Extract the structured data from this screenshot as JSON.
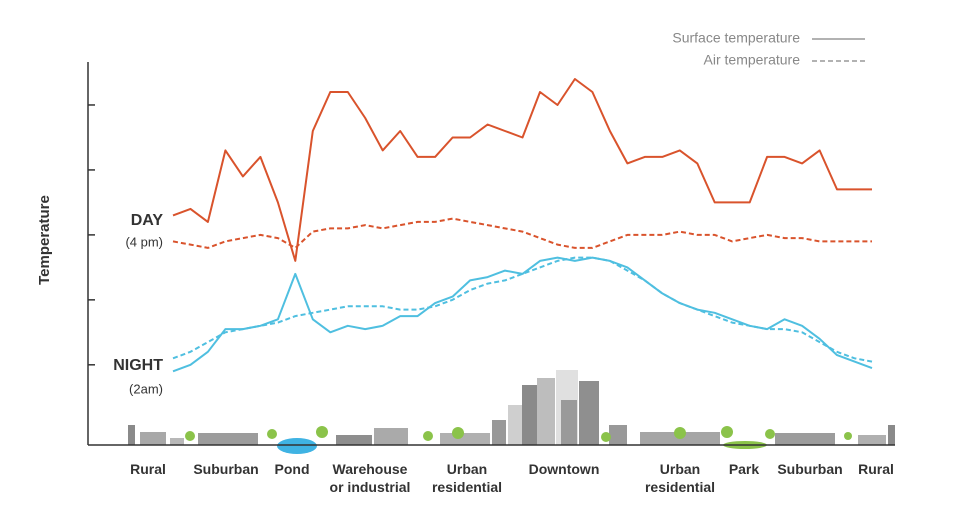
{
  "chart_data": {
    "type": "line",
    "y_label": "Temperature",
    "annotations": [
      "DAY",
      "(4 pm)",
      "NIGHT",
      "(2am)"
    ],
    "legend": [
      {
        "name": "Surface temperature",
        "style": "solid"
      },
      {
        "name": "Air temperature",
        "style": "dashed"
      }
    ],
    "zones": [
      "Rural",
      "Suburban",
      "Pond",
      "Warehouse or industrial",
      "Urban residential",
      "Downtown",
      "Urban residential",
      "Park",
      "Suburban",
      "Rural"
    ],
    "xlim": [
      0,
      100
    ],
    "ylim": [
      -0.25,
      5.6
    ],
    "yticks": [
      1,
      2,
      3,
      4,
      5
    ],
    "x": [
      0,
      2.5,
      5,
      7.5,
      10,
      12.5,
      15,
      17.5,
      20,
      22.5,
      25,
      27.5,
      30,
      32.5,
      35,
      37.5,
      40,
      42.5,
      45,
      47.5,
      50,
      52.5,
      55,
      57.5,
      60,
      62.5,
      65,
      67.5,
      70,
      72.5,
      75,
      77.5,
      80,
      82.5,
      85,
      87.5,
      90,
      92.5,
      95,
      97.5,
      100
    ],
    "series": [
      {
        "style": "solid",
        "color": "#d9532c",
        "values": [
          3.3,
          3.4,
          3.2,
          4.3,
          3.9,
          4.2,
          3.5,
          2.6,
          4.6,
          5.2,
          5.2,
          4.8,
          4.3,
          4.6,
          4.2,
          4.2,
          4.5,
          4.5,
          4.7,
          4.6,
          4.5,
          5.2,
          5.0,
          5.4,
          5.2,
          4.6,
          4.1,
          4.2,
          4.2,
          4.3,
          4.1,
          3.5,
          3.5,
          3.5,
          4.2,
          4.2,
          4.1,
          4.3,
          3.7,
          3.7,
          3.7
        ]
      },
      {
        "style": "dashed",
        "color": "#d9532c",
        "values": [
          2.9,
          2.85,
          2.8,
          2.9,
          2.95,
          3.0,
          2.95,
          2.8,
          3.05,
          3.1,
          3.1,
          3.15,
          3.1,
          3.15,
          3.2,
          3.2,
          3.25,
          3.2,
          3.15,
          3.1,
          3.05,
          2.95,
          2.85,
          2.8,
          2.8,
          2.9,
          3.0,
          3.0,
          3.0,
          3.05,
          3.0,
          3.0,
          2.9,
          2.95,
          3.0,
          2.95,
          2.95,
          2.9,
          2.9,
          2.9,
          2.9
        ]
      },
      {
        "style": "solid",
        "color": "#4fbfe0",
        "values": [
          0.9,
          1.0,
          1.2,
          1.55,
          1.55,
          1.6,
          1.7,
          2.4,
          1.7,
          1.5,
          1.6,
          1.55,
          1.6,
          1.75,
          1.75,
          1.95,
          2.05,
          2.3,
          2.35,
          2.45,
          2.4,
          2.6,
          2.65,
          2.6,
          2.65,
          2.6,
          2.5,
          2.3,
          2.1,
          1.95,
          1.85,
          1.8,
          1.7,
          1.6,
          1.55,
          1.7,
          1.6,
          1.4,
          1.15,
          1.05,
          0.95
        ]
      },
      {
        "style": "dashed",
        "color": "#4fbfe0",
        "values": [
          1.1,
          1.2,
          1.35,
          1.5,
          1.55,
          1.6,
          1.65,
          1.75,
          1.8,
          1.85,
          1.9,
          1.9,
          1.9,
          1.85,
          1.85,
          1.9,
          2.0,
          2.15,
          2.25,
          2.3,
          2.4,
          2.5,
          2.6,
          2.65,
          2.65,
          2.6,
          2.45,
          2.3,
          2.1,
          1.95,
          1.85,
          1.75,
          1.65,
          1.6,
          1.55,
          1.55,
          1.5,
          1.35,
          1.2,
          1.1,
          1.05
        ]
      }
    ]
  }
}
